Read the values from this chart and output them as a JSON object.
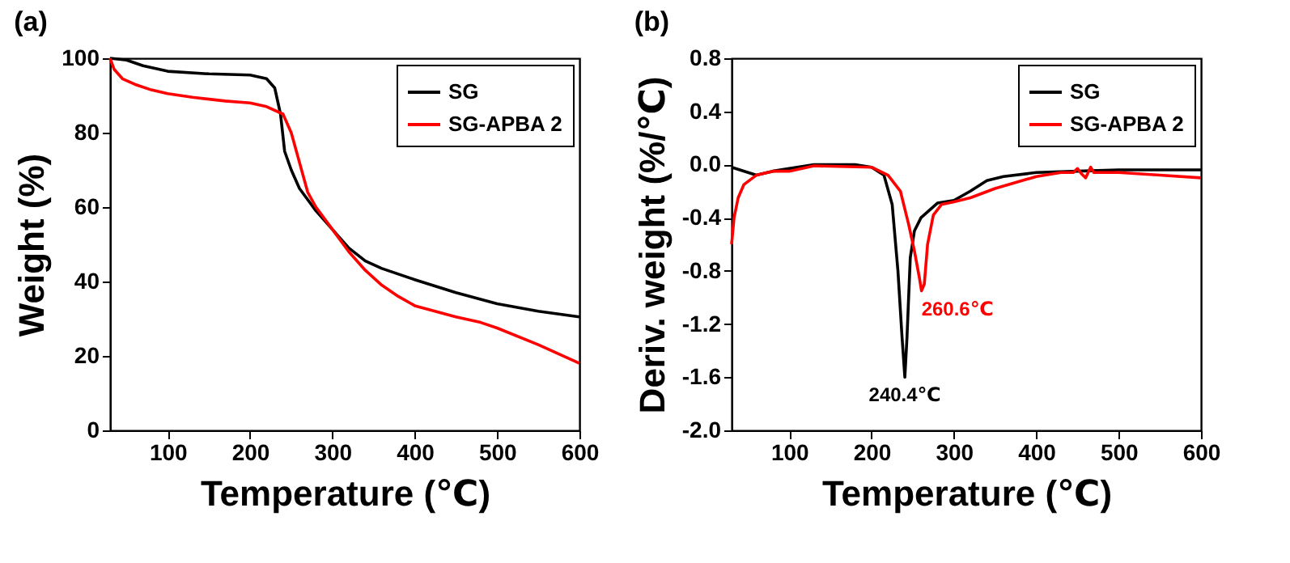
{
  "chart_data": [
    {
      "type": "line",
      "title": "(a)",
      "xlabel": "Temperature (℃)",
      "ylabel": "Weight (%)",
      "xlim": [
        30,
        600
      ],
      "xticks": [
        100,
        200,
        300,
        400,
        500,
        600
      ],
      "ylim": [
        0,
        100
      ],
      "yticks": [
        0,
        20,
        40,
        60,
        80,
        100
      ],
      "legend": "top right",
      "grid": false,
      "series": [
        {
          "name": "SG",
          "color": "#000000",
          "x": [
            30,
            50,
            70,
            100,
            150,
            200,
            220,
            230,
            237,
            242,
            250,
            260,
            280,
            300,
            320,
            340,
            360,
            400,
            450,
            500,
            550,
            600
          ],
          "values": [
            100,
            99.5,
            98,
            96.5,
            95.8,
            95.5,
            94.5,
            92,
            85,
            75,
            70,
            65,
            59,
            54,
            49,
            45.5,
            43.5,
            40.5,
            37,
            34,
            32,
            30.5
          ]
        },
        {
          "name": "SG-APBA 2",
          "color": "#ff0000",
          "x": [
            30,
            35,
            45,
            60,
            80,
            100,
            130,
            170,
            200,
            220,
            240,
            250,
            260,
            270,
            280,
            300,
            320,
            340,
            360,
            380,
            400,
            450,
            480,
            500,
            550,
            600
          ],
          "values": [
            100,
            97,
            94.5,
            93,
            91.5,
            90.5,
            89.5,
            88.5,
            88,
            87,
            85,
            80,
            72,
            64,
            60,
            54,
            48,
            43,
            39,
            36,
            33.5,
            30.5,
            29,
            27.5,
            23,
            18
          ]
        }
      ]
    },
    {
      "type": "line",
      "title": "(b)",
      "xlabel": "Temperature (℃)",
      "ylabel": "Deriv. weight (%/℃)",
      "xlim": [
        30,
        600
      ],
      "xticks": [
        100,
        200,
        300,
        400,
        500,
        600
      ],
      "ylim": [
        -2.0,
        0.8
      ],
      "yticks": [
        {
          "value": -2.0,
          "label": "-2.0"
        },
        {
          "value": -1.6,
          "label": "-1.6"
        },
        {
          "value": -1.2,
          "label": "-1.2"
        },
        {
          "value": -0.8,
          "label": "-0.8"
        },
        {
          "value": -0.4,
          "label": "-0.4"
        },
        {
          "value": 0,
          "label": "0.0"
        },
        {
          "value": 0.4,
          "label": "0.4"
        },
        {
          "value": 0.8,
          "label": "0.8"
        }
      ],
      "legend": "top right",
      "grid": false,
      "annotations": [
        {
          "text": "240.4℃",
          "x": 240.4,
          "y": -1.6
        },
        {
          "text": "260.6℃",
          "x": 260.6,
          "y": -0.95
        }
      ],
      "series": [
        {
          "name": "SG",
          "color": "#000000",
          "x": [
            30,
            50,
            60,
            80,
            100,
            130,
            180,
            200,
            215,
            225,
            232,
            237,
            240.4,
            243,
            247,
            252,
            260,
            280,
            300,
            320,
            340,
            360,
            400,
            450,
            500,
            600
          ],
          "values": [
            -0.02,
            -0.06,
            -0.08,
            -0.05,
            -0.03,
            0,
            0,
            -0.02,
            -0.08,
            -0.3,
            -0.8,
            -1.3,
            -1.6,
            -1.3,
            -0.7,
            -0.5,
            -0.4,
            -0.29,
            -0.27,
            -0.2,
            -0.12,
            -0.09,
            -0.06,
            -0.05,
            -0.04,
            -0.04
          ]
        },
        {
          "name": "SG-APBA 2",
          "color": "#ff0000",
          "x": [
            30,
            33,
            38,
            45,
            60,
            80,
            100,
            130,
            200,
            220,
            235,
            245,
            252,
            258,
            260.6,
            264,
            268,
            275,
            285,
            300,
            320,
            350,
            400,
            430,
            445,
            450,
            455,
            460,
            466,
            470,
            500,
            550,
            600
          ],
          "values": [
            -0.6,
            -0.4,
            -0.25,
            -0.15,
            -0.08,
            -0.05,
            -0.05,
            -0.01,
            -0.02,
            -0.08,
            -0.2,
            -0.45,
            -0.65,
            -0.85,
            -0.95,
            -0.9,
            -0.6,
            -0.38,
            -0.3,
            -0.28,
            -0.25,
            -0.18,
            -0.09,
            -0.06,
            -0.06,
            -0.03,
            -0.07,
            -0.1,
            -0.02,
            -0.06,
            -0.06,
            -0.08,
            -0.1
          ]
        }
      ]
    }
  ]
}
